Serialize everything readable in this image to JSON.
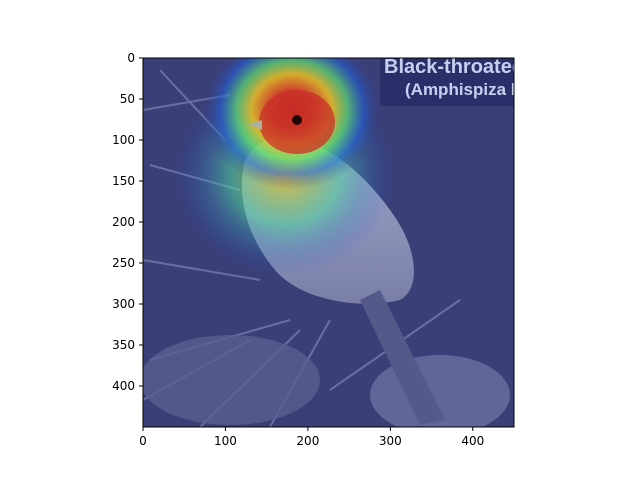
{
  "image": {
    "subject": "bird-heatmap-overlay",
    "caption_lines": [
      "Black-throated",
      "(Amphispiza b"
    ]
  },
  "x_axis": {
    "range": [
      0,
      450
    ],
    "ticks": [
      0,
      100,
      200,
      300,
      400
    ]
  },
  "y_axis": {
    "range": [
      0,
      450
    ],
    "inverted": true,
    "ticks": [
      0,
      50,
      100,
      150,
      200,
      250,
      300,
      350,
      400
    ]
  },
  "colors": {
    "overlay_base": "#3a3f78",
    "heat_hot": "#d42020",
    "heat_warm": "#f0c020",
    "heat_mid": "#40d0a0",
    "heat_cool": "#2050e0",
    "caption_box": "#2a2f6a",
    "caption_text": "#c8d0f0"
  }
}
